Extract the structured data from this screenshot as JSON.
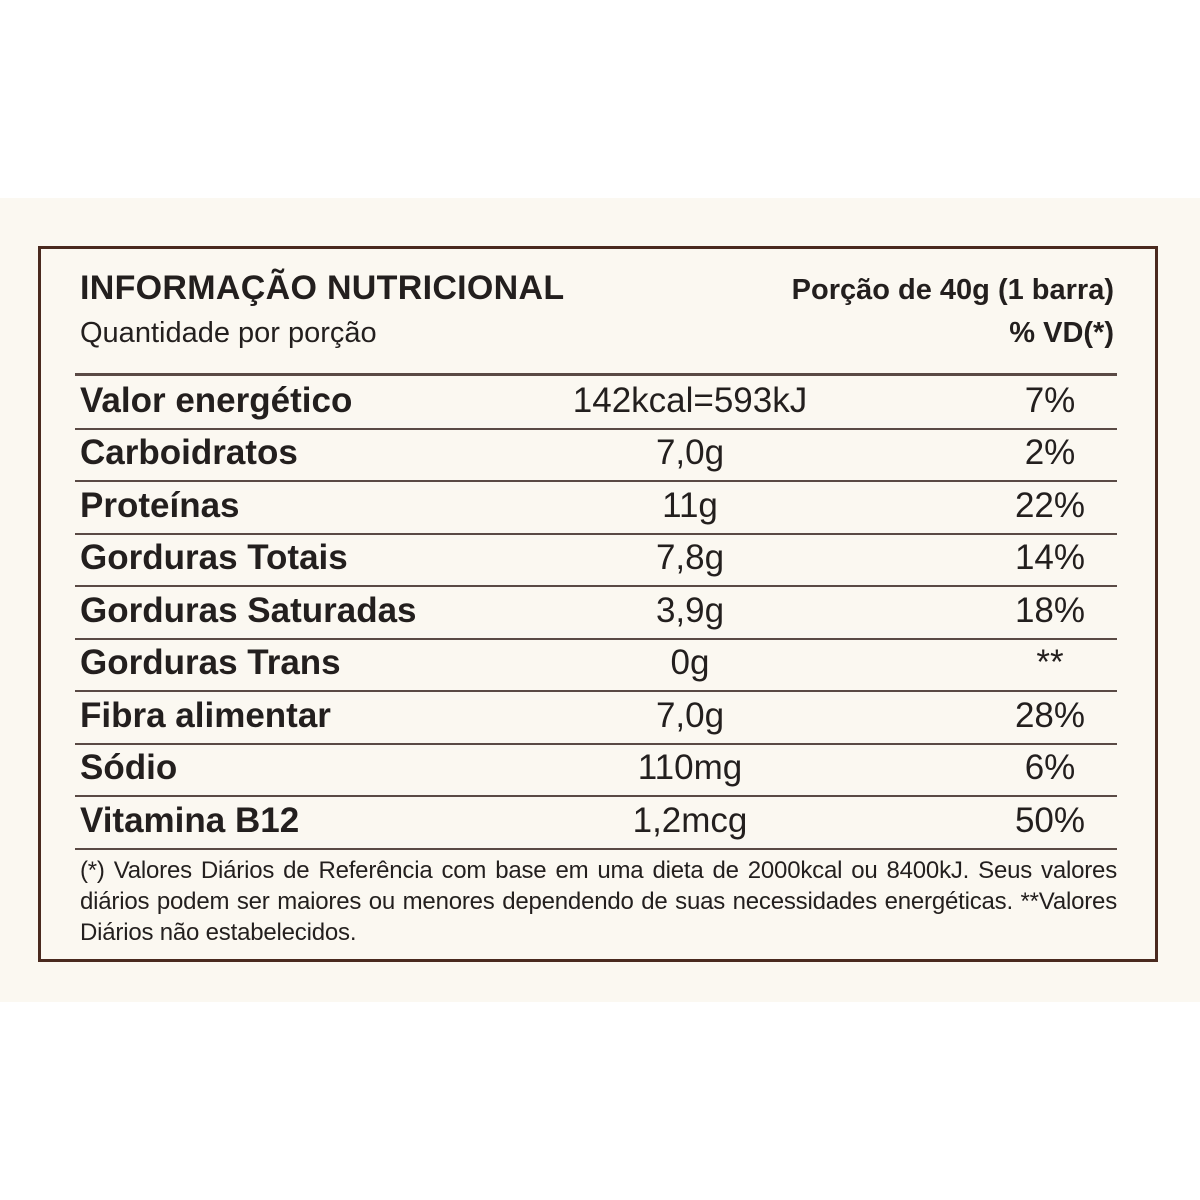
{
  "header": {
    "title": "INFORMAÇÃO NUTRICIONAL",
    "portion": "Porção de 40g (1 barra)",
    "subtitle": "Quantidade por porção",
    "vd_label": "% VD(*)"
  },
  "rows": [
    {
      "name": "Valor energético",
      "amount": "142kcal=593kJ",
      "vd": "7%"
    },
    {
      "name": "Carboidratos",
      "amount": "7,0g",
      "vd": "2%"
    },
    {
      "name": "Proteínas",
      "amount": "11g",
      "vd": "22%"
    },
    {
      "name": "Gorduras Totais",
      "amount": "7,8g",
      "vd": "14%"
    },
    {
      "name": "Gorduras Saturadas",
      "amount": "3,9g",
      "vd": "18%"
    },
    {
      "name": "Gorduras Trans",
      "amount": "0g",
      "vd": "**"
    },
    {
      "name": "Fibra alimentar",
      "amount": "7,0g",
      "vd": "28%"
    },
    {
      "name": "Sódio",
      "amount": "110mg",
      "vd": "6%"
    },
    {
      "name": "Vitamina B12",
      "amount": "1,2mcg",
      "vd": "50%"
    }
  ],
  "footnote": "(*) Valores Diários de Referência com base em uma dieta de 2000kcal ou 8400kJ. Seus valores diários podem ser maiores ou menores dependendo de suas necessidades energéticas. **Valores Diários não estabelecidos.",
  "colors": {
    "border": "#4a2a1f",
    "background": "#fbf8f1",
    "text": "#231f1e"
  }
}
